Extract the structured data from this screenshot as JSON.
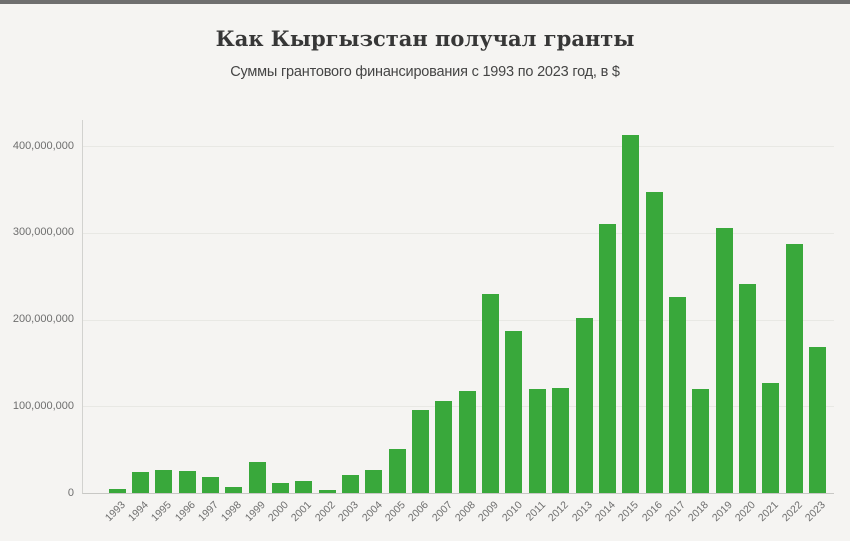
{
  "page": {
    "background_color": "#f5f4f2",
    "top_strip_color": "#6f6f6f"
  },
  "header": {
    "title": "Как Кыргызстан получал гранты",
    "subtitle": "Суммы грантового финансирования с 1993 по 2023 год, в $"
  },
  "chart_data": {
    "type": "bar",
    "title": "Как Кыргызстан получал гранты",
    "subtitle": "Суммы грантового финансирования с 1993 по 2023 год, в $",
    "categories": [
      "1993",
      "1994",
      "1995",
      "1996",
      "1997",
      "1998",
      "1999",
      "2000",
      "2001",
      "2002",
      "2003",
      "2004",
      "2005",
      "2006",
      "2007",
      "2008",
      "2009",
      "2010",
      "2011",
      "2012",
      "2013",
      "2014",
      "2015",
      "2016",
      "2017",
      "2018",
      "2019",
      "2020",
      "2021",
      "2022",
      "2023"
    ],
    "values": [
      5000000,
      24000000,
      27000000,
      25000000,
      18000000,
      7000000,
      36000000,
      12000000,
      14000000,
      4000000,
      21000000,
      26000000,
      51000000,
      96000000,
      106000000,
      118000000,
      230000000,
      187000000,
      120000000,
      121000000,
      202000000,
      310000000,
      413000000,
      347000000,
      226000000,
      120000000,
      306000000,
      241000000,
      127000000,
      287000000,
      168000000
    ],
    "xlabel": "",
    "ylabel": "",
    "ylim": [
      0,
      430000000
    ],
    "yticks": [
      0,
      100000000,
      200000000,
      300000000,
      400000000
    ],
    "ytick_labels": [
      "0",
      "100,000,000",
      "200,000,000",
      "300,000,000",
      "400,000,000"
    ],
    "bar_color": "#39a83b",
    "grid": "horizontal",
    "legend": "none",
    "x_label_rotation_deg": -45
  }
}
